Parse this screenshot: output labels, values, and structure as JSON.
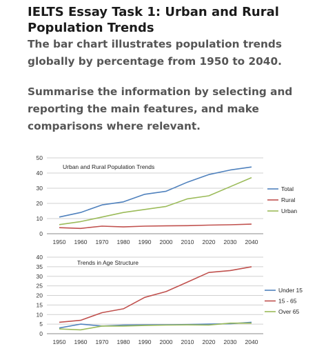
{
  "header": {
    "title": "IELTS Essay Task 1: Urban and Rural Population Trends",
    "intro": "The bar chart illustrates population trends globally by percentage from 1950 to 2040.",
    "instruction": "Summarise the information by selecting and reporting the main features, and make comparisons where relevant."
  },
  "chart_data": [
    {
      "type": "line",
      "title": "Urban and Rural Population Trends",
      "xlabel": "",
      "ylabel": "",
      "x": [
        "1950",
        "1960",
        "1970",
        "1980",
        "1990",
        "2000",
        "2010",
        "2020",
        "2030",
        "2040"
      ],
      "ylim": [
        0,
        50
      ],
      "yticks": [
        0,
        10,
        20,
        30,
        40,
        50
      ],
      "grid": true,
      "legend": "right",
      "series": [
        {
          "name": "Total",
          "color": "#4f81bd",
          "values": [
            11,
            14,
            19,
            21,
            26,
            28,
            34,
            39,
            42,
            44
          ]
        },
        {
          "name": "Rural",
          "color": "#c0504d",
          "values": [
            4,
            3.5,
            5,
            4.5,
            5,
            5.2,
            5.3,
            5.7,
            5.9,
            6.3
          ]
        },
        {
          "name": "Urban",
          "color": "#9bbb59",
          "values": [
            6,
            8,
            11,
            14,
            16,
            18,
            23,
            25,
            31,
            37
          ]
        }
      ]
    },
    {
      "type": "line",
      "title": "Trends in Age Structure",
      "xlabel": "",
      "ylabel": "",
      "x": [
        "1950",
        "1960",
        "1970",
        "1980",
        "1990",
        "2000",
        "2010",
        "2020",
        "2030",
        "2040"
      ],
      "ylim": [
        0,
        40
      ],
      "yticks": [
        0,
        5,
        10,
        15,
        20,
        25,
        30,
        35,
        40
      ],
      "grid": true,
      "legend": "right",
      "series": [
        {
          "name": "Under 15",
          "color": "#4f81bd",
          "values": [
            3,
            5,
            4,
            4.5,
            4.6,
            4.7,
            4.8,
            5,
            5.2,
            6
          ]
        },
        {
          "name": "15 - 65",
          "color": "#c0504d",
          "values": [
            6,
            7,
            11,
            13,
            19,
            22,
            27,
            32,
            33,
            35
          ]
        },
        {
          "name": "Over 65",
          "color": "#9bbb59",
          "values": [
            2.5,
            2,
            4,
            4,
            4.3,
            4.5,
            4.6,
            4.5,
            5.5,
            5.5
          ]
        }
      ]
    }
  ]
}
